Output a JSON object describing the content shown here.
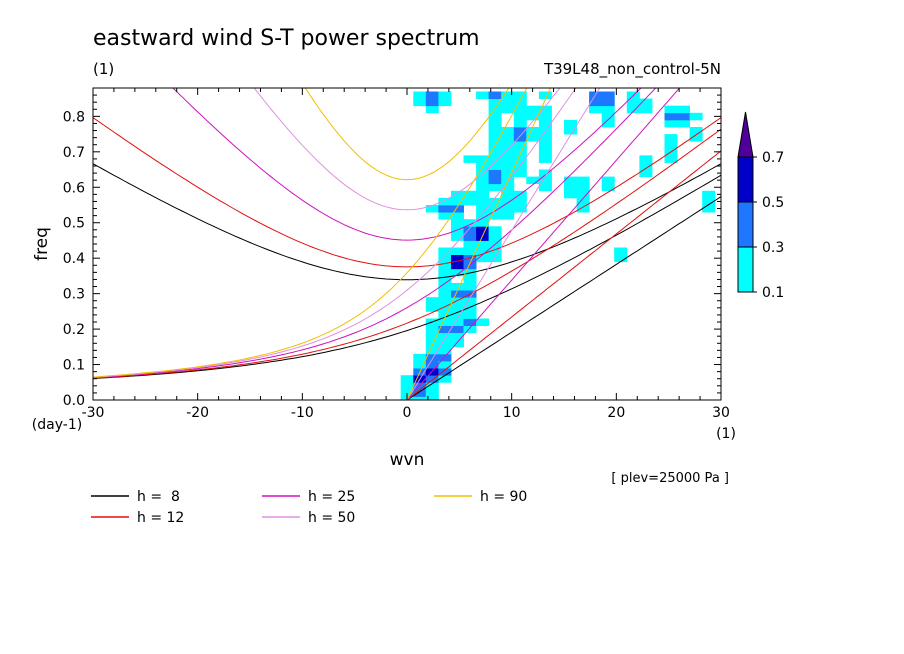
{
  "chart_data": {
    "type": "heatmap",
    "title": "eastward wind S-T power spectrum",
    "title_unit": "(1)",
    "run_label": "T39L48_non_control-5N",
    "xlabel": "wvn",
    "x_unit": "(1)",
    "ylabel": "freq",
    "y_unit": "(day-1)",
    "note": "[ plev=25000 Pa ]",
    "xlim": [
      -30,
      30
    ],
    "ylim": [
      0,
      0.88
    ],
    "x_ticks": [
      "-30",
      "-20",
      "-10",
      "0",
      "10",
      "20",
      "30"
    ],
    "y_ticks": [
      "0.0",
      "0.1",
      "0.2",
      "0.3",
      "0.4",
      "0.5",
      "0.6",
      "0.7",
      "0.8"
    ],
    "colorbar": {
      "levels": [
        "0.1",
        "0.3",
        "0.5",
        "0.7"
      ],
      "colors": [
        "#00ffff",
        "#1e78ff",
        "#0000c8",
        "#50009a"
      ]
    },
    "curves": [
      {
        "label": "h =  8",
        "h": 8,
        "color": "#000000"
      },
      {
        "label": "h = 12",
        "h": 12,
        "color": "#e01010"
      },
      {
        "label": "h = 25",
        "h": 25,
        "color": "#d010c0"
      },
      {
        "label": "h = 50",
        "h": 50,
        "color": "#e090e0"
      },
      {
        "label": "h = 90",
        "h": 90,
        "color": "#f0c000"
      }
    ],
    "power_blobs": [
      {
        "x": 1.5,
        "y": 0.06,
        "v": 0.7
      },
      {
        "x": 2.5,
        "y": 0.08,
        "v": 0.7
      },
      {
        "x": 1.0,
        "y": 0.03,
        "v": 0.5
      },
      {
        "x": 3.0,
        "y": 0.12,
        "v": 0.5
      },
      {
        "x": 4.0,
        "y": 0.2,
        "v": 0.5
      },
      {
        "x": 5.5,
        "y": 0.3,
        "v": 0.5
      },
      {
        "x": 5.0,
        "y": 0.39,
        "v": 0.7
      },
      {
        "x": 7.0,
        "y": 0.47,
        "v": 0.7
      },
      {
        "x": 4.0,
        "y": 0.54,
        "v": 0.5
      },
      {
        "x": 8.0,
        "y": 0.63,
        "v": 0.5
      },
      {
        "x": 10.5,
        "y": 0.75,
        "v": 0.5
      },
      {
        "x": 8.5,
        "y": 0.86,
        "v": 0.5
      },
      {
        "x": 2.5,
        "y": 0.85,
        "v": 0.5
      },
      {
        "x": 18.5,
        "y": 0.85,
        "v": 0.5
      },
      {
        "x": 22.0,
        "y": 0.83,
        "v": 0.3
      },
      {
        "x": 26.0,
        "y": 0.8,
        "v": 0.5
      },
      {
        "x": 3.5,
        "y": 0.27,
        "v": 0.3
      },
      {
        "x": 6.0,
        "y": 0.22,
        "v": 0.3
      },
      {
        "x": 8.0,
        "y": 0.42,
        "v": 0.3
      },
      {
        "x": 10.0,
        "y": 0.56,
        "v": 0.3
      },
      {
        "x": 13.0,
        "y": 0.62,
        "v": 0.3
      },
      {
        "x": 16.0,
        "y": 0.6,
        "v": 0.3
      }
    ]
  }
}
